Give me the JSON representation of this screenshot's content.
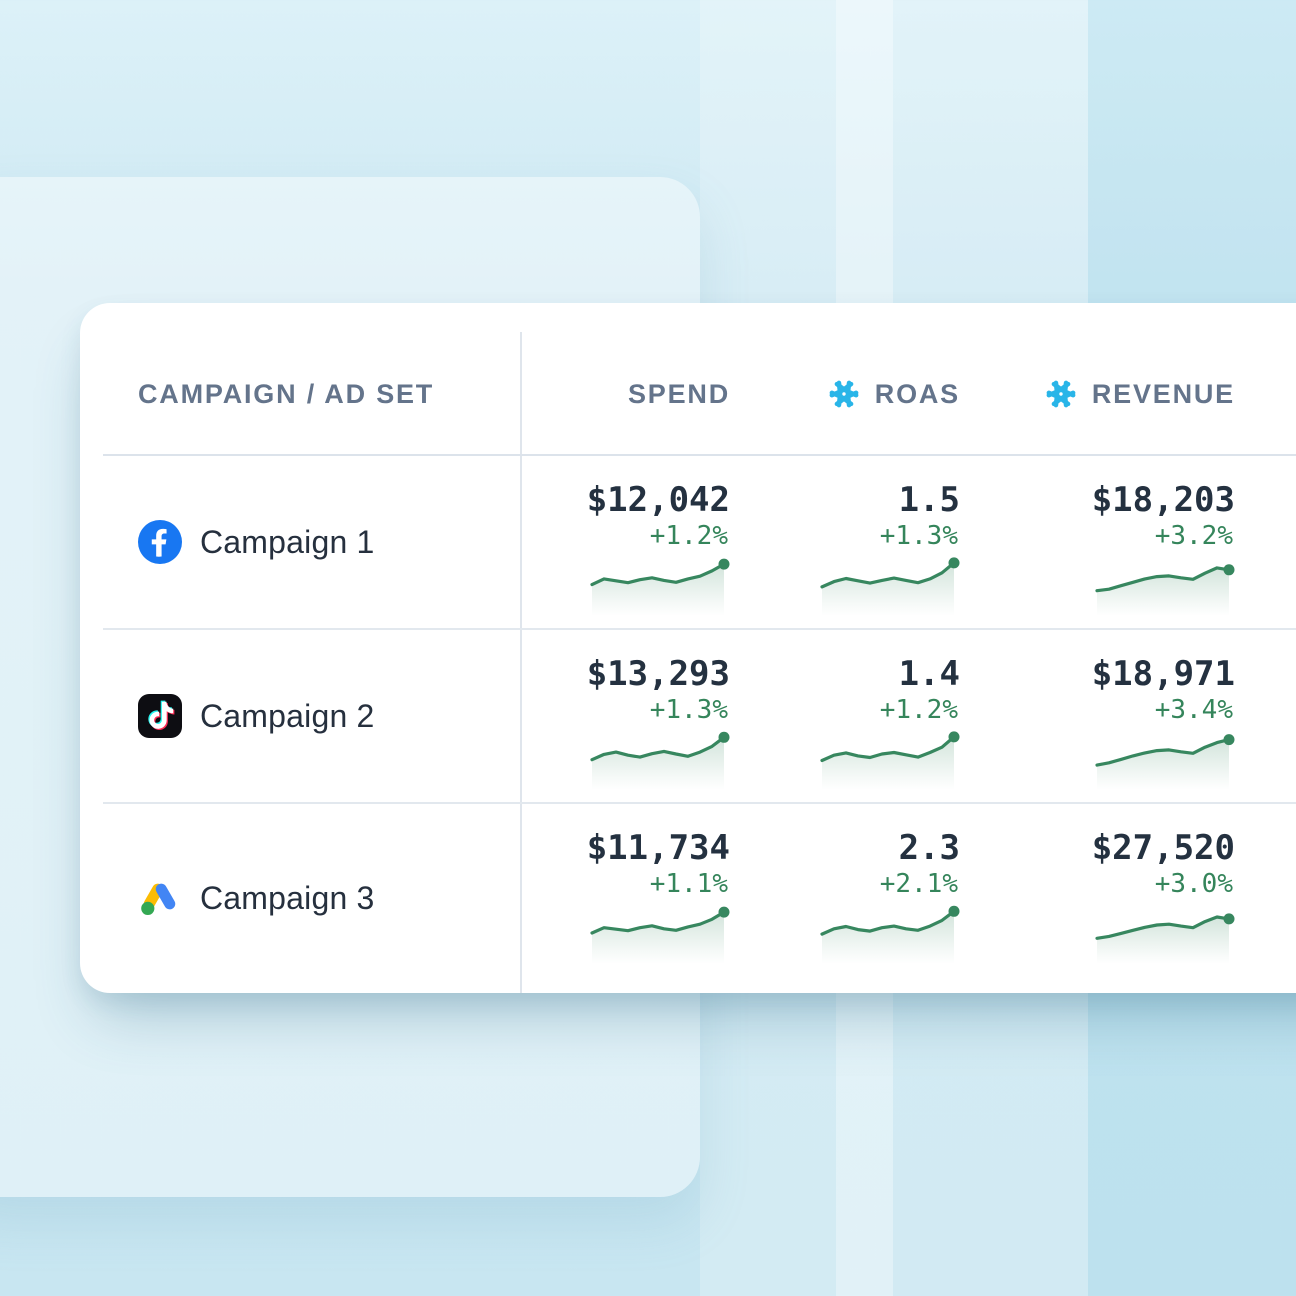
{
  "colors": {
    "page_background": "#CFE9F3",
    "card_background": "#FFFFFF",
    "header_text": "#64748B",
    "value_text": "#243140",
    "accent_green": "#37875F",
    "snowflake_blue": "#29B5E8",
    "facebook_blue": "#1877F2",
    "tiktok_black": "#0D0D12",
    "google_yellow": "#FBBC04",
    "google_blue": "#4285F4",
    "google_green": "#34A853"
  },
  "table": {
    "columns": [
      {
        "label": "CAMPAIGN / AD SET",
        "icon": null
      },
      {
        "label": "SPEND",
        "icon": null
      },
      {
        "label": "ROAS",
        "icon": "snowflake-icon"
      },
      {
        "label": "REVENUE",
        "icon": "snowflake-icon"
      }
    ],
    "rows": [
      {
        "platform": "facebook",
        "platform_icon": "facebook-icon",
        "name": "Campaign 1",
        "metrics": [
          {
            "value": "$12,042",
            "delta": "+1.2%",
            "spark": [
              30,
              45,
              40,
              35,
              43,
              48,
              41,
              36,
              45,
              52,
              66,
              84
            ]
          },
          {
            "value": "1.5",
            "delta": "+1.3%",
            "spark": [
              24,
              38,
              46,
              40,
              34,
              41,
              47,
              41,
              35,
              45,
              61,
              87
            ]
          },
          {
            "value": "$18,203",
            "delta": "+3.2%",
            "spark": [
              14,
              18,
              27,
              36,
              45,
              51,
              53,
              48,
              44,
              60,
              74,
              69
            ]
          }
        ]
      },
      {
        "platform": "tiktok",
        "platform_icon": "tiktok-icon",
        "name": "Campaign 2",
        "metrics": [
          {
            "value": "$13,293",
            "delta": "+1.3%",
            "spark": [
              27,
              41,
              47,
              39,
              34,
              43,
              49,
              42,
              36,
              47,
              62,
              86
            ]
          },
          {
            "value": "1.4",
            "delta": "+1.2%",
            "spark": [
              25,
              39,
              45,
              37,
              33,
              42,
              46,
              40,
              34,
              46,
              60,
              87
            ]
          },
          {
            "value": "$18,971",
            "delta": "+3.4%",
            "spark": [
              13,
              19,
              28,
              37,
              45,
              51,
              53,
              48,
              44,
              60,
              72,
              80
            ]
          }
        ]
      },
      {
        "platform": "google-ads",
        "platform_icon": "google-ads-icon",
        "name": "Campaign 3",
        "metrics": [
          {
            "value": "$11,734",
            "delta": "+1.1%",
            "spark": [
              29,
              43,
              39,
              35,
              43,
              48,
              40,
              36,
              45,
              52,
              65,
              84
            ]
          },
          {
            "value": "2.3",
            "delta": "+2.1%",
            "spark": [
              26,
              40,
              46,
              38,
              34,
              43,
              47,
              40,
              36,
              47,
              62,
              86
            ]
          },
          {
            "value": "$27,520",
            "delta": "+3.0%",
            "spark": [
              15,
              20,
              28,
              36,
              44,
              50,
              52,
              47,
              43,
              59,
              71,
              66
            ]
          }
        ]
      }
    ]
  }
}
